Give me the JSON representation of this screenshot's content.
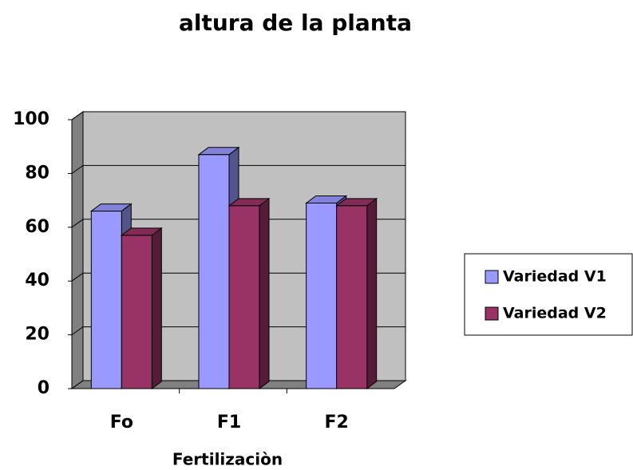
{
  "chart_data": {
    "type": "bar3d",
    "title": "altura de la planta",
    "x_label": "Fertilizaciòn",
    "categories": [
      "Fo",
      "F1",
      "F2"
    ],
    "series": [
      {
        "name": "Variedad V1",
        "color": "#9999ff",
        "values": [
          66,
          87,
          69
        ]
      },
      {
        "name": "Variedad V2",
        "color": "#993366",
        "values": [
          57,
          68,
          68
        ]
      }
    ],
    "ylim": [
      0,
      100
    ],
    "yticks": [
      0,
      20,
      40,
      60,
      80,
      100
    ],
    "grid": true,
    "legend": "right"
  }
}
